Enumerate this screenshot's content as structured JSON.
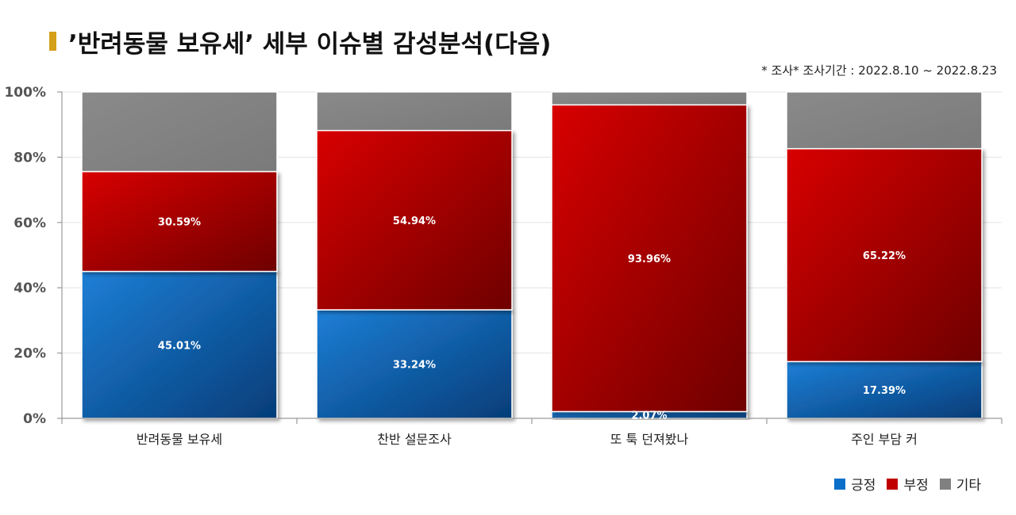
{
  "title": "’반려동물 보유세’ 세부 이슈별 감성분석(다음)",
  "subtitle": "* 조사* 조사기간 : 2022.8.10 ~ 2022.8.23",
  "colors": {
    "positive": "#0a6fc9",
    "negative": "#c00000",
    "other": "#808080",
    "title_mark": "#d4a017"
  },
  "chart_data": {
    "type": "bar",
    "stacked": "percent",
    "title": "’반려동물 보유세’ 세부 이슈별 감성분석(다음)",
    "categories": [
      "반려동물 보유세",
      "찬반 설문조사",
      "또 툭 던져봤나",
      "주인 부담 커"
    ],
    "series": [
      {
        "name": "긍정",
        "values": [
          45.01,
          33.24,
          2.07,
          17.39
        ],
        "labels": [
          "45.01%",
          "33.24%",
          "2.07%",
          "17.39%"
        ]
      },
      {
        "name": "부정",
        "values": [
          30.59,
          54.94,
          93.96,
          65.22
        ],
        "labels": [
          "30.59%",
          "54.94%",
          "93.96%",
          "65.22%"
        ]
      },
      {
        "name": "기타",
        "values": [
          24.4,
          11.82,
          3.97,
          17.39
        ],
        "labels": [
          "",
          "",
          "",
          ""
        ]
      }
    ],
    "yticks": [
      "0%",
      "20%",
      "40%",
      "60%",
      "80%",
      "100%"
    ],
    "ylim": [
      0,
      100
    ],
    "grid": true,
    "legend": "bottom-right"
  }
}
